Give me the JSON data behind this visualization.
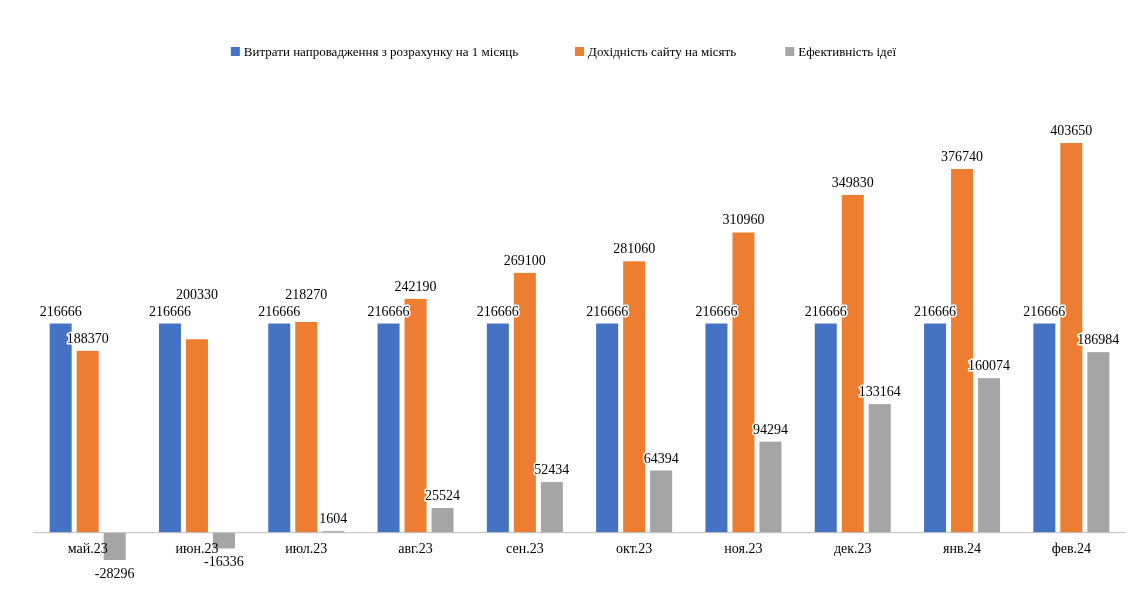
{
  "chart_data": {
    "type": "bar",
    "categories": [
      "май.23",
      "июн.23",
      "июл.23",
      "авг.23",
      "сен.23",
      "окт.23",
      "ноя.23",
      "дек.23",
      "янв.24",
      "фев.24"
    ],
    "series": [
      {
        "name": "Витрати напровадження з розрахунку на 1 місяць",
        "color": "#4472c4",
        "values": [
          216666,
          216666,
          216666,
          216666,
          216666,
          216666,
          216666,
          216666,
          216666,
          216666
        ]
      },
      {
        "name": "Дохідність сайту на місять",
        "color": "#ed7d31",
        "values": [
          188370,
          200330,
          218270,
          242190,
          269100,
          281060,
          310960,
          349830,
          376740,
          403650
        ]
      },
      {
        "name": "Ефективність ідеї",
        "color": "#a5a5a5",
        "values": [
          -28296,
          -16336,
          1604,
          25524,
          52434,
          64394,
          94294,
          133164,
          160074,
          186984
        ]
      }
    ],
    "data_labels": true,
    "legend": "top"
  }
}
